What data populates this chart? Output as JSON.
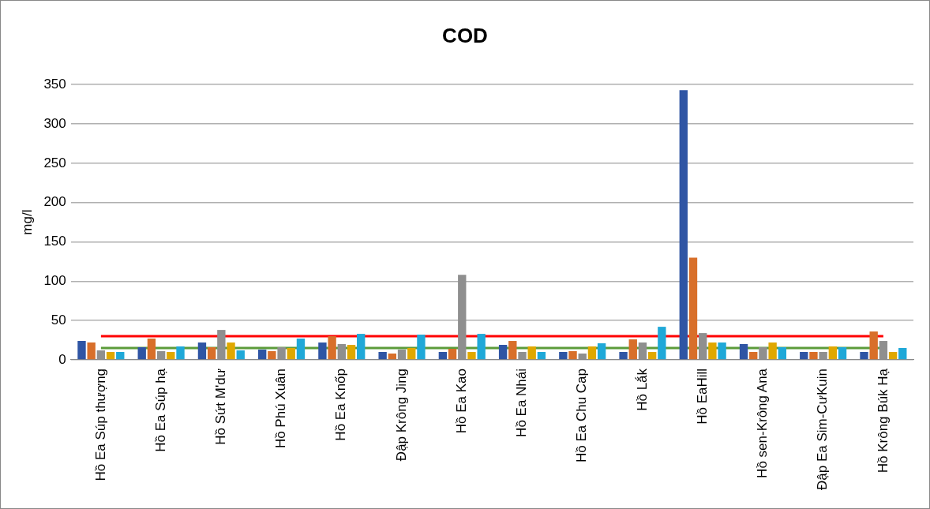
{
  "chart_data": {
    "type": "bar",
    "title": "COD",
    "ylabel": "mg/l",
    "categories": [
      "Hồ Ea Súp thượng",
      "Hồ Ea Súp hạ",
      "Hồ Sứt M'dư",
      "Hồ Phú Xuân",
      "Hồ Ea Knốp",
      "Đập Krông Jing",
      "Hồ Ea Kao",
      "Hồ Ea Nhái",
      "Hồ Ea Chu Cap",
      "Hồ Lắk",
      "Hồ EaHill",
      "Hồ sen-Krông Ana",
      "Đập Ea Sim-CưKuin",
      "Hồ Krông Búk Hạ"
    ],
    "series": [
      {
        "color": "#2f55a4",
        "values": [
          24,
          16,
          22,
          13,
          22,
          10,
          10,
          19,
          10,
          10,
          343,
          20,
          10,
          10
        ]
      },
      {
        "color": "#d86f2a",
        "values": [
          22,
          27,
          16,
          11,
          30,
          8,
          14,
          24,
          11,
          26,
          130,
          10,
          10,
          36
        ]
      },
      {
        "color": "#8f8f8f",
        "values": [
          12,
          11,
          38,
          16,
          20,
          13,
          108,
          10,
          8,
          22,
          34,
          16,
          10,
          24
        ]
      },
      {
        "color": "#e0a800",
        "values": [
          10,
          10,
          22,
          15,
          19,
          15,
          10,
          17,
          17,
          10,
          22,
          22,
          17,
          10
        ]
      },
      {
        "color": "#1fa8d8",
        "values": [
          10,
          17,
          12,
          27,
          33,
          32,
          33,
          10,
          21,
          42,
          22,
          16,
          16,
          15
        ]
      }
    ],
    "ylim": [
      0,
      350
    ],
    "yticks": [
      0,
      50,
      100,
      150,
      200,
      250,
      300,
      350
    ],
    "grid": "y",
    "legend": false,
    "ref_lines": [
      {
        "axis": "y",
        "value": 30,
        "color": "#ff0000"
      },
      {
        "axis": "y",
        "value": 15,
        "color": "#5b9b3a"
      }
    ]
  }
}
